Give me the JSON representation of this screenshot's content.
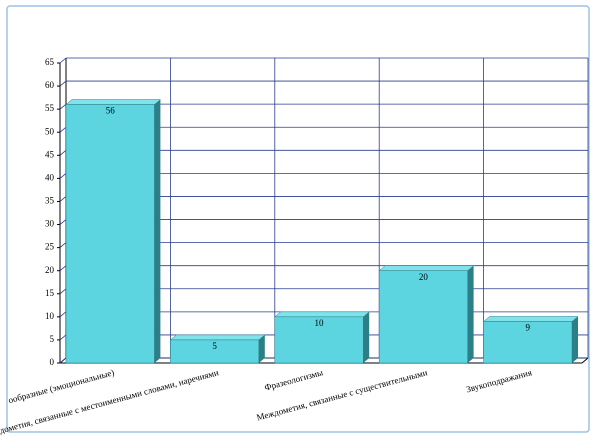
{
  "chart_data": {
    "type": "bar3d",
    "categories": [
      "ообразные (эмоциональные)",
      "дометия, связанные с местоименными словами, наречиями",
      "Фразеологизмы",
      "Междометия, связанные с существительными",
      "Звукоподражания"
    ],
    "values": [
      56,
      5,
      10,
      20,
      9
    ],
    "color": "#5dd5e0",
    "side_color": "#2c7f86",
    "top_color": "#7fe3ec",
    "grid_color": "#2a3d8f",
    "ylim": [
      0,
      65
    ],
    "yticks": [
      0,
      5,
      10,
      15,
      20,
      25,
      30,
      35,
      40,
      45,
      50,
      55,
      60,
      65
    ],
    "grid": true
  }
}
